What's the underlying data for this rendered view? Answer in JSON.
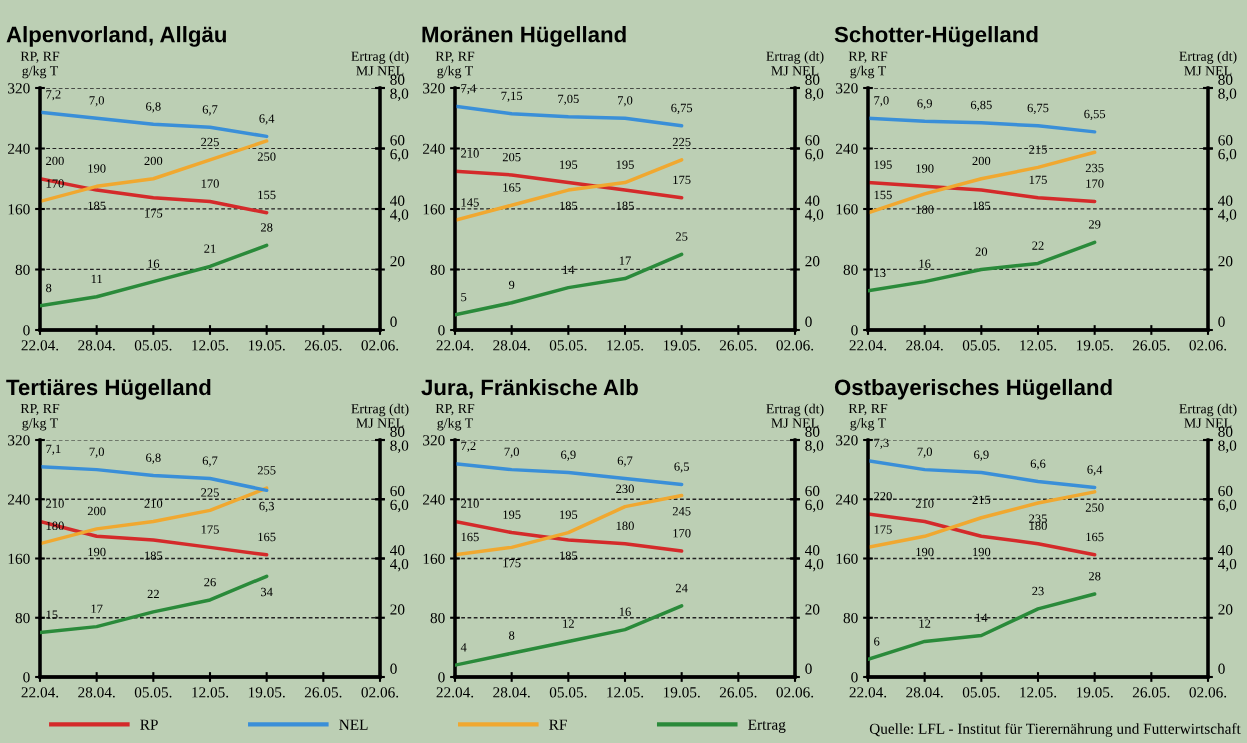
{
  "chart_data": [
    {
      "type": "line",
      "title": "Alpenvorland, Allgäu",
      "ylabel": "RP, RF\ng/kg T",
      "y2label": "MJ NEL",
      "y3label": "Ertrag (dt)",
      "categories": [
        "22.04.",
        "28.04.",
        "05.05.",
        "12.05.",
        "19.05.",
        "26.05.",
        "02.06."
      ],
      "ylim": [
        0,
        320
      ],
      "yticks": [
        0,
        80,
        160,
        240,
        320
      ],
      "y2lim": [
        0,
        8
      ],
      "y2ticks": [
        {
          "value": 4,
          "label": "4,0"
        },
        {
          "value": 6,
          "label": "6,0"
        },
        {
          "value": 8,
          "label": "8,0"
        }
      ],
      "y3lim": [
        0,
        80
      ],
      "y3ticks": [
        0,
        20,
        40,
        60,
        80
      ],
      "grid": "y",
      "legend": "bottom",
      "series": [
        {
          "name": "RP",
          "color": "#d42a2a",
          "values": [
            200,
            185,
            175,
            170,
            155,
            null,
            null
          ],
          "value_labels": [
            "200",
            "185",
            "175",
            "170",
            "155",
            null,
            null
          ]
        },
        {
          "name": "NEL",
          "color": "#3a8fd8",
          "axis": "y2",
          "values": [
            7.2,
            7.0,
            6.8,
            6.7,
            6.4,
            null,
            null
          ],
          "value_labels": [
            "7,2",
            "7,0",
            "6,8",
            "6,7",
            "6,4",
            null,
            null
          ]
        },
        {
          "name": "RF",
          "color": "#f0a830",
          "values": [
            170,
            190,
            200,
            225,
            250,
            null,
            null
          ],
          "value_labels": [
            "170",
            "190",
            "200",
            "225",
            "250",
            null,
            null
          ]
        },
        {
          "name": "Ertrag",
          "color": "#2a8a3a",
          "axis": "y3",
          "values": [
            8,
            11,
            16,
            21,
            28,
            null,
            null
          ],
          "value_labels": [
            "8",
            "11",
            "16",
            "21",
            "28",
            null,
            null
          ]
        }
      ]
    },
    {
      "type": "line",
      "title": "Moränen Hügelland",
      "ylabel": "RP, RF\ng/kg T",
      "y2label": "MJ NEL",
      "y3label": "Ertrag (dt)",
      "categories": [
        "22.04.",
        "28.04.",
        "05.05.",
        "12.05.",
        "19.05.",
        "26.05.",
        "02.06."
      ],
      "ylim": [
        0,
        320
      ],
      "yticks": [
        0,
        80,
        160,
        240,
        320
      ],
      "y2lim": [
        0,
        8
      ],
      "y2ticks": [
        {
          "value": 4,
          "label": "4,0"
        },
        {
          "value": 6,
          "label": "6,0"
        },
        {
          "value": 8,
          "label": "8,0"
        }
      ],
      "y3lim": [
        0,
        80
      ],
      "y3ticks": [
        0,
        20,
        40,
        60,
        80
      ],
      "grid": "y",
      "series": [
        {
          "name": "RP",
          "color": "#d42a2a",
          "values": [
            210,
            205,
            195,
            185,
            175,
            null,
            null
          ],
          "value_labels": [
            "210",
            "205",
            "195",
            "185",
            "175",
            null,
            null
          ]
        },
        {
          "name": "NEL",
          "color": "#3a8fd8",
          "axis": "y2",
          "values": [
            7.4,
            7.15,
            7.05,
            7.0,
            6.75,
            null,
            null
          ],
          "value_labels": [
            "7,4",
            "7,15",
            "7,05",
            "7,0",
            "6,75",
            null,
            null
          ]
        },
        {
          "name": "RF",
          "color": "#f0a830",
          "values": [
            145,
            165,
            185,
            195,
            225,
            null,
            null
          ],
          "value_labels": [
            "145",
            "165",
            "185",
            "195",
            "225",
            null,
            null
          ]
        },
        {
          "name": "Ertrag",
          "color": "#2a8a3a",
          "axis": "y3",
          "values": [
            5,
            9,
            14,
            17,
            25,
            null,
            null
          ],
          "value_labels": [
            "5",
            "9",
            "14",
            "17",
            "25",
            null,
            null
          ]
        }
      ]
    },
    {
      "type": "line",
      "title": "Schotter-Hügelland",
      "ylabel": "RP, RF\ng/kg T",
      "y2label": "MJ NEL",
      "y3label": "Ertrag (dt)",
      "categories": [
        "22.04.",
        "28.04.",
        "05.05.",
        "12.05.",
        "19.05.",
        "26.05.",
        "02.06."
      ],
      "ylim": [
        0,
        320
      ],
      "yticks": [
        0,
        80,
        160,
        240,
        320
      ],
      "y2lim": [
        0,
        8
      ],
      "y2ticks": [
        {
          "value": 4,
          "label": "4,0"
        },
        {
          "value": 6,
          "label": "6,0"
        },
        {
          "value": 8,
          "label": "8,0"
        }
      ],
      "y3lim": [
        0,
        80
      ],
      "y3ticks": [
        0,
        20,
        40,
        60,
        80
      ],
      "grid": "y",
      "series": [
        {
          "name": "RP",
          "color": "#d42a2a",
          "values": [
            195,
            190,
            185,
            175,
            170,
            null,
            null
          ],
          "value_labels": [
            "195",
            "190",
            "185",
            "175",
            "170",
            null,
            null
          ]
        },
        {
          "name": "NEL",
          "color": "#3a8fd8",
          "axis": "y2",
          "values": [
            7.0,
            6.9,
            6.85,
            6.75,
            6.55,
            null,
            null
          ],
          "value_labels": [
            "7,0",
            "6,9",
            "6,85",
            "6,75",
            "6,55",
            null,
            null
          ]
        },
        {
          "name": "RF",
          "color": "#f0a830",
          "values": [
            155,
            180,
            200,
            215,
            235,
            null,
            null
          ],
          "value_labels": [
            "155",
            "180",
            "200",
            "215",
            "235",
            null,
            null
          ]
        },
        {
          "name": "Ertrag",
          "color": "#2a8a3a",
          "axis": "y3",
          "values": [
            13,
            16,
            20,
            22,
            29,
            null,
            null
          ],
          "value_labels": [
            "13",
            "16",
            "20",
            "22",
            "29",
            null,
            null
          ]
        }
      ]
    },
    {
      "type": "line",
      "title": "Tertiäres Hügelland",
      "ylabel": "RP, RF\ng/kg T",
      "y2label": "MJ NEL",
      "y3label": "Ertrag (dt)",
      "categories": [
        "22.04.",
        "28.04.",
        "05.05.",
        "12.05.",
        "19.05.",
        "26.05.",
        "02.06."
      ],
      "ylim": [
        0,
        320
      ],
      "yticks": [
        0,
        80,
        160,
        240,
        320
      ],
      "y2lim": [
        0,
        8
      ],
      "y2ticks": [
        {
          "value": 4,
          "label": "4,0"
        },
        {
          "value": 6,
          "label": "6,0"
        },
        {
          "value": 8,
          "label": "8,0"
        }
      ],
      "y3lim": [
        0,
        80
      ],
      "y3ticks": [
        0,
        20,
        40,
        60,
        80
      ],
      "grid": "y",
      "series": [
        {
          "name": "RP",
          "color": "#d42a2a",
          "values": [
            210,
            190,
            185,
            175,
            165,
            null,
            null
          ],
          "value_labels": [
            "210",
            "190",
            "185",
            "175",
            "165",
            null,
            null
          ]
        },
        {
          "name": "NEL",
          "color": "#3a8fd8",
          "axis": "y2",
          "values": [
            7.1,
            7.0,
            6.8,
            6.7,
            6.3,
            null,
            null
          ],
          "value_labels": [
            "7,1",
            "7,0",
            "6,8",
            "6,7",
            "6,3",
            null,
            null
          ]
        },
        {
          "name": "RF",
          "color": "#f0a830",
          "values": [
            180,
            200,
            210,
            225,
            255,
            null,
            null
          ],
          "value_labels": [
            "180",
            "200",
            "210",
            "225",
            "255",
            null,
            null
          ]
        },
        {
          "name": "Ertrag",
          "color": "#2a8a3a",
          "axis": "y3",
          "values": [
            15,
            17,
            22,
            26,
            34,
            null,
            null
          ],
          "value_labels": [
            "15",
            "17",
            "22",
            "26",
            "34",
            null,
            null
          ]
        }
      ]
    },
    {
      "type": "line",
      "title": "Jura, Fränkische Alb",
      "ylabel": "RP, RF\ng/kg T",
      "y2label": "MJ NEL",
      "y3label": "Ertrag (dt)",
      "categories": [
        "22.04.",
        "28.04.",
        "05.05.",
        "12.05.",
        "19.05.",
        "26.05.",
        "02.06."
      ],
      "ylim": [
        0,
        320
      ],
      "yticks": [
        0,
        80,
        160,
        240,
        320
      ],
      "y2lim": [
        0,
        8
      ],
      "y2ticks": [
        {
          "value": 4,
          "label": "4,0"
        },
        {
          "value": 6,
          "label": "6,0"
        },
        {
          "value": 8,
          "label": "8,0"
        }
      ],
      "y3lim": [
        0,
        80
      ],
      "y3ticks": [
        0,
        20,
        40,
        60,
        80
      ],
      "grid": "y",
      "series": [
        {
          "name": "RP",
          "color": "#d42a2a",
          "values": [
            210,
            195,
            185,
            180,
            170,
            null,
            null
          ],
          "value_labels": [
            "210",
            "195",
            "185",
            "180",
            "170",
            null,
            null
          ]
        },
        {
          "name": "NEL",
          "color": "#3a8fd8",
          "axis": "y2",
          "values": [
            7.2,
            7.0,
            6.9,
            6.7,
            6.5,
            null,
            null
          ],
          "value_labels": [
            "7,2",
            "7,0",
            "6,9",
            "6,7",
            "6,5",
            null,
            null
          ]
        },
        {
          "name": "RF",
          "color": "#f0a830",
          "values": [
            165,
            175,
            195,
            230,
            245,
            null,
            null
          ],
          "value_labels": [
            "165",
            "175",
            "195",
            "230",
            "245",
            null,
            null
          ]
        },
        {
          "name": "Ertrag",
          "color": "#2a8a3a",
          "axis": "y3",
          "values": [
            4,
            8,
            12,
            16,
            24,
            null,
            null
          ],
          "value_labels": [
            "4",
            "8",
            "12",
            "16",
            "24",
            null,
            null
          ]
        }
      ]
    },
    {
      "type": "line",
      "title": "Ostbayerisches Hügelland",
      "ylabel": "RP, RF\ng/kg T",
      "y2label": "MJ NEL",
      "y3label": "Ertrag (dt)",
      "categories": [
        "22.04.",
        "28.04.",
        "05.05.",
        "12.05.",
        "19.05.",
        "26.05.",
        "02.06."
      ],
      "ylim": [
        0,
        320
      ],
      "yticks": [
        0,
        80,
        160,
        240,
        320
      ],
      "y2lim": [
        0,
        8
      ],
      "y2ticks": [
        {
          "value": 4,
          "label": "4,0"
        },
        {
          "value": 6,
          "label": "6,0"
        },
        {
          "value": 8,
          "label": "8,0"
        }
      ],
      "y3lim": [
        0,
        80
      ],
      "y3ticks": [
        0,
        20,
        40,
        60,
        80
      ],
      "grid": "y",
      "annotations": [
        "Quelle: LFL - Institut für Tierernährung und Futterwirtschaft"
      ],
      "series": [
        {
          "name": "RP",
          "color": "#d42a2a",
          "values": [
            220,
            210,
            190,
            180,
            165,
            null,
            null
          ],
          "value_labels": [
            "220",
            "210",
            "190",
            "180",
            "165",
            null,
            null
          ]
        },
        {
          "name": "NEL",
          "color": "#3a8fd8",
          "axis": "y2",
          "values": [
            7.3,
            7.0,
            6.9,
            6.6,
            6.4,
            null,
            null
          ],
          "value_labels": [
            "7,3",
            "7,0",
            "6,9",
            "6,6",
            "6,4",
            null,
            null
          ]
        },
        {
          "name": "RF",
          "color": "#f0a830",
          "values": [
            175,
            190,
            215,
            235,
            250,
            null,
            null
          ],
          "value_labels": [
            "175",
            "190",
            "215",
            "235",
            "250",
            null,
            null
          ]
        },
        {
          "name": "Ertrag",
          "color": "#2a8a3a",
          "axis": "y3",
          "values": [
            6,
            12,
            14,
            23,
            28,
            null,
            null
          ],
          "value_labels": [
            "6",
            "12",
            "14",
            "23",
            "28",
            null,
            null
          ]
        }
      ]
    }
  ]
}
